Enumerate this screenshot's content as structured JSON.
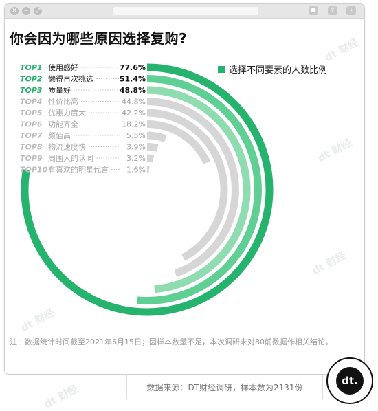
{
  "brand": {
    "accent": "#25b36e",
    "accent_mid": "#5fcf93",
    "accent_light": "#8edcb0",
    "gray": "#d6d6d6",
    "rank_inactive": "#bdbdbd",
    "watermark": "dt 财经",
    "logo_text": "dt."
  },
  "window": {
    "controls": [
      "✕",
      "−",
      "⤢"
    ]
  },
  "title": "你会因为哪些原因选择复购?",
  "legend_label": "选择不同要素的人数比例",
  "note": "注：数据统计时间截至2021年6月15日；因样本数量不足，本次调研未对80前数据作相关结论。",
  "source": "数据来源：DT财经调研，样本数为2131份",
  "chart_data": {
    "type": "radial-bar",
    "legend": "选择不同要素的人数比例",
    "max_value": 100,
    "items": [
      {
        "rank": "TOP1",
        "label": "使用感好",
        "value": 77.6,
        "value_label": "77.6%",
        "color": "#25b36e",
        "highlight": true
      },
      {
        "rank": "TOP2",
        "label": "懒得再次挑选",
        "value": 51.4,
        "value_label": "51.4%",
        "color": "#5fcf93",
        "highlight": true
      },
      {
        "rank": "TOP3",
        "label": "质量好",
        "value": 48.8,
        "value_label": "48.8%",
        "color": "#8edcb0",
        "highlight": true
      },
      {
        "rank": "TOP4",
        "label": "性价比高",
        "value": 44.8,
        "value_label": "44.8%",
        "color": "#d6d6d6",
        "highlight": false
      },
      {
        "rank": "TOP5",
        "label": "优惠力度大",
        "value": 42.2,
        "value_label": "42.2%",
        "color": "#d6d6d6",
        "highlight": false
      },
      {
        "rank": "TOP6",
        "label": "功能齐全",
        "value": 18.2,
        "value_label": "18.2%",
        "color": "#d6d6d6",
        "highlight": false
      },
      {
        "rank": "TOP7",
        "label": "颜值高",
        "value": 5.5,
        "value_label": "5.5%",
        "color": "#d6d6d6",
        "highlight": false
      },
      {
        "rank": "TOP8",
        "label": "物流速度快",
        "value": 3.9,
        "value_label": "3.9%",
        "color": "#d6d6d6",
        "highlight": false
      },
      {
        "rank": "TOP9",
        "label": "周围人的认同",
        "value": 3.2,
        "value_label": "3.2%",
        "color": "#d6d6d6",
        "highlight": false
      },
      {
        "rank": "TOP10",
        "label": "有喜欢的明星代言",
        "value": 1.6,
        "value_label": "1.6%",
        "color": "#d6d6d6",
        "highlight": false
      }
    ]
  }
}
